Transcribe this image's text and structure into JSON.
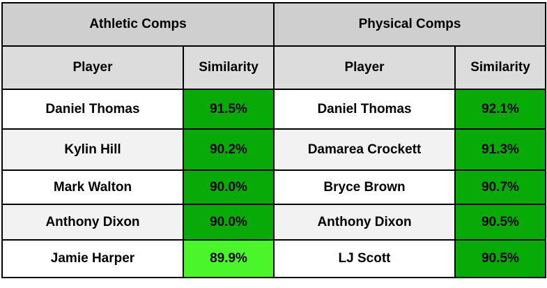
{
  "groups": {
    "athletic_title": "Athletic Comps",
    "physical_title": "Physical Comps"
  },
  "columns": {
    "player": "Player",
    "similarity": "Similarity"
  },
  "rows": [
    {
      "athletic_player": "Daniel Thomas",
      "athletic_similarity": "91.5%",
      "physical_player": "Daniel Thomas",
      "physical_similarity": "92.1%"
    },
    {
      "athletic_player": "Kylin Hill",
      "athletic_similarity": "90.2%",
      "physical_player": "Damarea Crockett",
      "physical_similarity": "91.3%"
    },
    {
      "athletic_player": "Mark Walton",
      "athletic_similarity": "90.0%",
      "physical_player": "Bryce Brown",
      "physical_similarity": "90.7%"
    },
    {
      "athletic_player": "Anthony Dixon",
      "athletic_similarity": "90.0%",
      "physical_player": "Anthony Dixon",
      "physical_similarity": "90.5%"
    },
    {
      "athletic_player": "Jamie Harper",
      "athletic_similarity": "89.9%",
      "physical_player": "LJ Scott",
      "physical_similarity": "90.5%"
    }
  ],
  "colors": {
    "group_header_bg": "#cfcfcf",
    "column_header_bg": "#dcdcdc",
    "similarity_high": "#08aa08",
    "similarity_lower": "#4bf52c",
    "row_alt_bg": "#f2f2f2"
  }
}
